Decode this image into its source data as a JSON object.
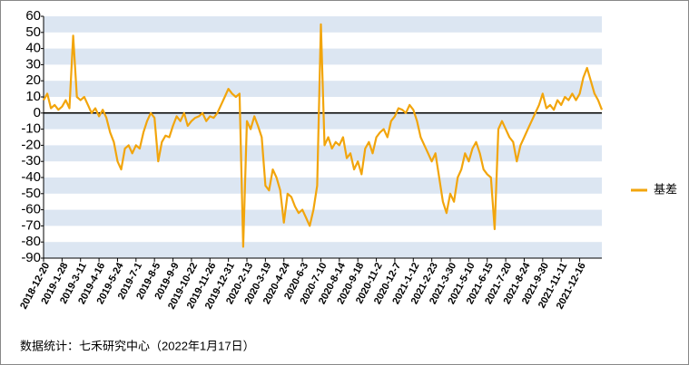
{
  "chart_data": {
    "type": "line",
    "categories": [
      "2018-12-20",
      null,
      null,
      null,
      null,
      "2019-1-28",
      null,
      null,
      null,
      null,
      "2019-3-11",
      null,
      null,
      null,
      null,
      "2019-4-16",
      null,
      null,
      null,
      null,
      "2019-5-24",
      null,
      null,
      null,
      null,
      "2019-7-1",
      null,
      null,
      null,
      null,
      "2019-8-5",
      null,
      null,
      null,
      null,
      "2019-9-9",
      null,
      null,
      null,
      null,
      "2019-10-22",
      null,
      null,
      null,
      null,
      "2019-11-26",
      null,
      null,
      null,
      null,
      "2019-12-31",
      null,
      null,
      null,
      null,
      "2020-2-13",
      null,
      null,
      null,
      null,
      "2020-3-19",
      null,
      null,
      null,
      null,
      "2020-4-24",
      null,
      null,
      null,
      null,
      "2020-6-3",
      null,
      null,
      null,
      null,
      "2020-7-10",
      null,
      null,
      null,
      null,
      "2020-8-14",
      null,
      null,
      null,
      null,
      "2020-9-18",
      null,
      null,
      null,
      null,
      "2020-11-2",
      null,
      null,
      null,
      null,
      "2020-12-7",
      null,
      null,
      null,
      null,
      "2021-1-12",
      null,
      null,
      null,
      null,
      "2021-2-23",
      null,
      null,
      null,
      null,
      "2021-3-30",
      null,
      null,
      null,
      null,
      "2021-5-10",
      null,
      null,
      null,
      null,
      "2021-6-15",
      null,
      null,
      null,
      null,
      "2021-7-20",
      null,
      null,
      null,
      null,
      "2021-8-24",
      null,
      null,
      null,
      null,
      "2021-9-30",
      null,
      null,
      null,
      null,
      "2021-11-11",
      null,
      null,
      null,
      null,
      "2021-12-16",
      null,
      null,
      null,
      null,
      null,
      null
    ],
    "series": [
      {
        "name": "基差",
        "color": "#f2a50c",
        "values": [
          8,
          12,
          3,
          5,
          2,
          4,
          8,
          3,
          48,
          10,
          8,
          10,
          5,
          0,
          3,
          -2,
          2,
          -3,
          -12,
          -18,
          -30,
          -35,
          -22,
          -20,
          -25,
          -20,
          -22,
          -12,
          -5,
          0,
          -3,
          -30,
          -18,
          -14,
          -15,
          -8,
          -2,
          -5,
          0,
          -8,
          -5,
          -3,
          -2,
          0,
          -5,
          -2,
          -3,
          0,
          5,
          10,
          15,
          12,
          10,
          12,
          -83,
          -5,
          -10,
          -2,
          -8,
          -15,
          -45,
          -48,
          -35,
          -40,
          -48,
          -68,
          -50,
          -52,
          -58,
          -62,
          -60,
          -65,
          -70,
          -60,
          -45,
          55,
          -20,
          -15,
          -22,
          -18,
          -20,
          -15,
          -28,
          -25,
          -35,
          -30,
          -38,
          -22,
          -18,
          -25,
          -15,
          -12,
          -10,
          -15,
          -5,
          -2,
          3,
          2,
          0,
          5,
          2,
          -5,
          -15,
          -20,
          -25,
          -30,
          -25,
          -40,
          -55,
          -62,
          -50,
          -55,
          -40,
          -35,
          -25,
          -30,
          -22,
          -18,
          -25,
          -35,
          -38,
          -40,
          -72,
          -10,
          -5,
          -10,
          -15,
          -18,
          -30,
          -20,
          -15,
          -10,
          -5,
          0,
          5,
          12,
          3,
          5,
          2,
          8,
          5,
          10,
          8,
          12,
          8,
          12,
          22,
          28,
          20,
          12,
          8,
          2
        ]
      }
    ],
    "ylim": [
      -90,
      60
    ],
    "yticks": [
      60,
      50,
      40,
      30,
      20,
      10,
      0,
      -10,
      -20,
      -30,
      -40,
      -50,
      -60,
      -70,
      -80,
      -90
    ],
    "grid": true,
    "legend": "right",
    "source": "数据统计：七禾研究中心（2022年1月17日）"
  }
}
